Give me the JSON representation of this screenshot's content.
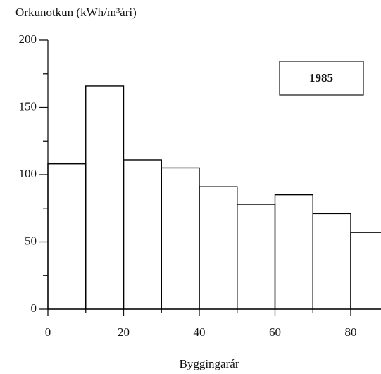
{
  "chart_data": {
    "type": "histogram",
    "title": "Orkunotkun  (kWh/m³ári)",
    "xlabel": "Byggingarár",
    "annotation": "1985",
    "bins": [
      0,
      10,
      20,
      30,
      40,
      50,
      60,
      70,
      80,
      90
    ],
    "values": [
      108,
      166,
      111,
      105,
      91,
      78,
      85,
      71,
      57
    ],
    "color": "#000000",
    "xlim": [
      0,
      88
    ],
    "ylim": [
      0,
      200
    ],
    "xticks": [
      0,
      20,
      40,
      60,
      80
    ],
    "xminorticks": [
      10,
      30,
      50,
      70
    ],
    "yticks": [
      0,
      50,
      100,
      150,
      200
    ],
    "yminorticks": [
      25,
      75,
      125,
      175
    ]
  }
}
